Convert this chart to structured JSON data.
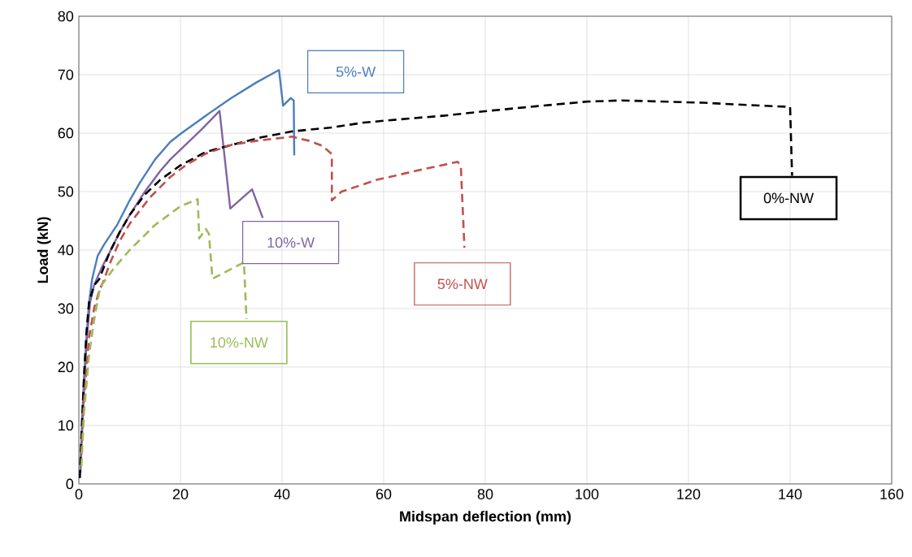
{
  "chart_data": {
    "type": "line",
    "xlabel": "Midspan deflection (mm)",
    "ylabel": "Load (kN)",
    "xlim": [
      0,
      160
    ],
    "ylim": [
      0,
      80
    ],
    "xticks": [
      0,
      20,
      40,
      60,
      80,
      100,
      120,
      140,
      160
    ],
    "yticks": [
      0,
      10,
      20,
      30,
      40,
      50,
      60,
      70,
      80
    ],
    "grid": true,
    "marker": "none",
    "series": [
      {
        "name": "5%-W",
        "color": "#4a7ebb",
        "line_style": "solid",
        "x": [
          0.3,
          0.6,
          1,
          1.5,
          2,
          2.6,
          3.7,
          5,
          7.6,
          10,
          12,
          15,
          18,
          20.2,
          25,
          30,
          35,
          39.4,
          40.2,
          41.7,
          42.3,
          42.4
        ],
        "values": [
          2,
          10,
          18,
          25,
          31,
          35,
          39,
          41,
          44.4,
          48.5,
          51.5,
          55.5,
          58.5,
          60,
          63,
          66,
          68.7,
          70.8,
          64.7,
          66,
          65.6,
          56.2
        ]
      },
      {
        "name": "10%-W",
        "color": "#8064a2",
        "line_style": "solid",
        "x": [
          0.3,
          0.8,
          1.5,
          2.2,
          3,
          4.5,
          6,
          8,
          10,
          13,
          16,
          18,
          21,
          24,
          27.7,
          29.8,
          34.1,
          36.2
        ],
        "values": [
          2,
          12,
          24,
          31,
          34,
          37,
          39.5,
          43,
          46,
          50,
          53.5,
          55.5,
          58,
          60.5,
          63.8,
          47.1,
          50.4,
          45.5
        ]
      },
      {
        "name": "0%-NW",
        "color": "#000000",
        "line_style": "dashed",
        "x": [
          0.2,
          0.5,
          1,
          1.5,
          2,
          3,
          4,
          6,
          8,
          10,
          13,
          16,
          20,
          25,
          31,
          36,
          42,
          50,
          56,
          65,
          72,
          80.5,
          90,
          100,
          107,
          115,
          123,
          132,
          140,
          140.4
        ],
        "values": [
          1,
          8,
          18,
          26,
          31,
          34,
          35,
          39.5,
          43,
          46,
          49.5,
          52,
          54.5,
          56.8,
          58.2,
          59.3,
          60.3,
          61,
          61.8,
          62.5,
          63,
          63.8,
          64.6,
          65.4,
          65.6,
          65.4,
          65.2,
          64.8,
          64.5,
          52.7
        ]
      },
      {
        "name": "5%-NW",
        "color": "#c0504d",
        "line_style": "dashed",
        "x": [
          0.5,
          1,
          2,
          3,
          4,
          5,
          6,
          8,
          10,
          14,
          18,
          21,
          25,
          30,
          35,
          40,
          42,
          45.3,
          48,
          49.8,
          49.8,
          51.7,
          58.6,
          66.6,
          74.6,
          75.2,
          75.9
        ],
        "values": [
          5,
          14,
          25,
          30,
          33,
          35,
          37.5,
          41.5,
          44.5,
          49,
          52.5,
          54.5,
          56.5,
          58,
          58.7,
          59.2,
          59.4,
          58.7,
          57.8,
          56.4,
          48.5,
          50,
          52,
          53.6,
          55.1,
          54.2,
          40.4
        ]
      },
      {
        "name": "10%-NW",
        "color": "#9bbb59",
        "line_style": "dashed",
        "x": [
          0.5,
          1,
          2,
          3,
          4.2,
          7,
          10,
          15,
          20,
          23.4,
          23.7,
          25,
          25.6,
          26.3,
          32.5,
          33
        ],
        "values": [
          3,
          12,
          22,
          28,
          33.7,
          37,
          40,
          44.3,
          47.5,
          48.7,
          42,
          43.6,
          42.8,
          35.1,
          37.9,
          28.2
        ]
      }
    ]
  }
}
